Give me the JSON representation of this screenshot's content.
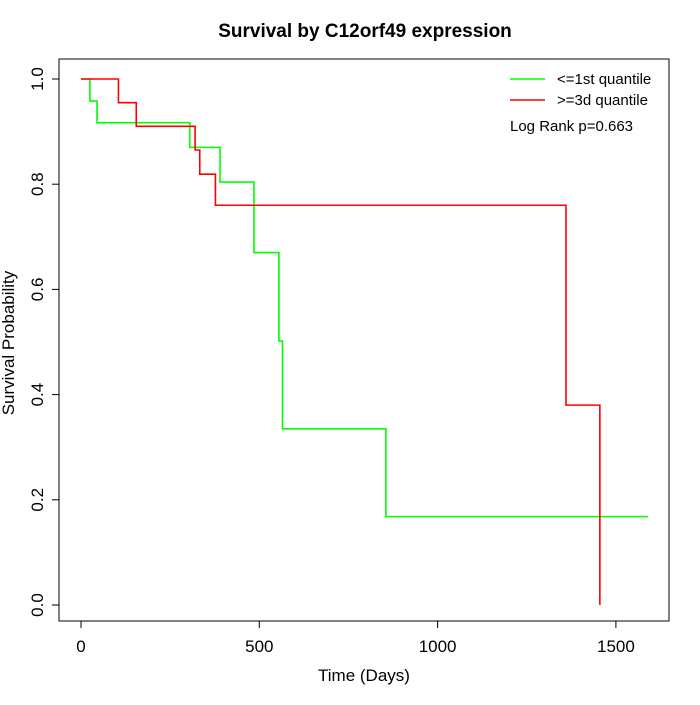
{
  "chart_data": {
    "type": "line",
    "title": "Survival by C12orf49 expression",
    "xlabel": "Time (Days)",
    "ylabel": "Survival Probability",
    "xlim": [
      0,
      1590
    ],
    "ylim": [
      0,
      1
    ],
    "x_ticks": [
      0,
      500,
      1000,
      1500
    ],
    "y_ticks": [
      0.0,
      0.2,
      0.4,
      0.6,
      0.8,
      1.0
    ],
    "x_tick_labels": [
      "0",
      "500",
      "1000",
      "1500"
    ],
    "y_tick_labels": [
      "0.0",
      "0.2",
      "0.4",
      "0.6",
      "0.8",
      "1.0"
    ],
    "legend_position": "top-right",
    "annotation": "Log Rank p=0.663",
    "grid": false,
    "series": [
      {
        "name": "<=1st quantile",
        "color": "#00ff00",
        "step_x": [
          0,
          25,
          45,
          305,
          390,
          485,
          555,
          565,
          855,
          1590
        ],
        "step_y": [
          1.0,
          0.958,
          0.917,
          0.87,
          0.804,
          0.67,
          0.502,
          0.335,
          0.168,
          0.168
        ]
      },
      {
        "name": ">=3d quantile",
        "color": "#ff0000",
        "step_x": [
          0,
          105,
          155,
          320,
          333,
          377,
          1360,
          1455
        ],
        "step_y": [
          1.0,
          0.955,
          0.91,
          0.865,
          0.819,
          0.76,
          0.38,
          0.0
        ]
      }
    ]
  }
}
